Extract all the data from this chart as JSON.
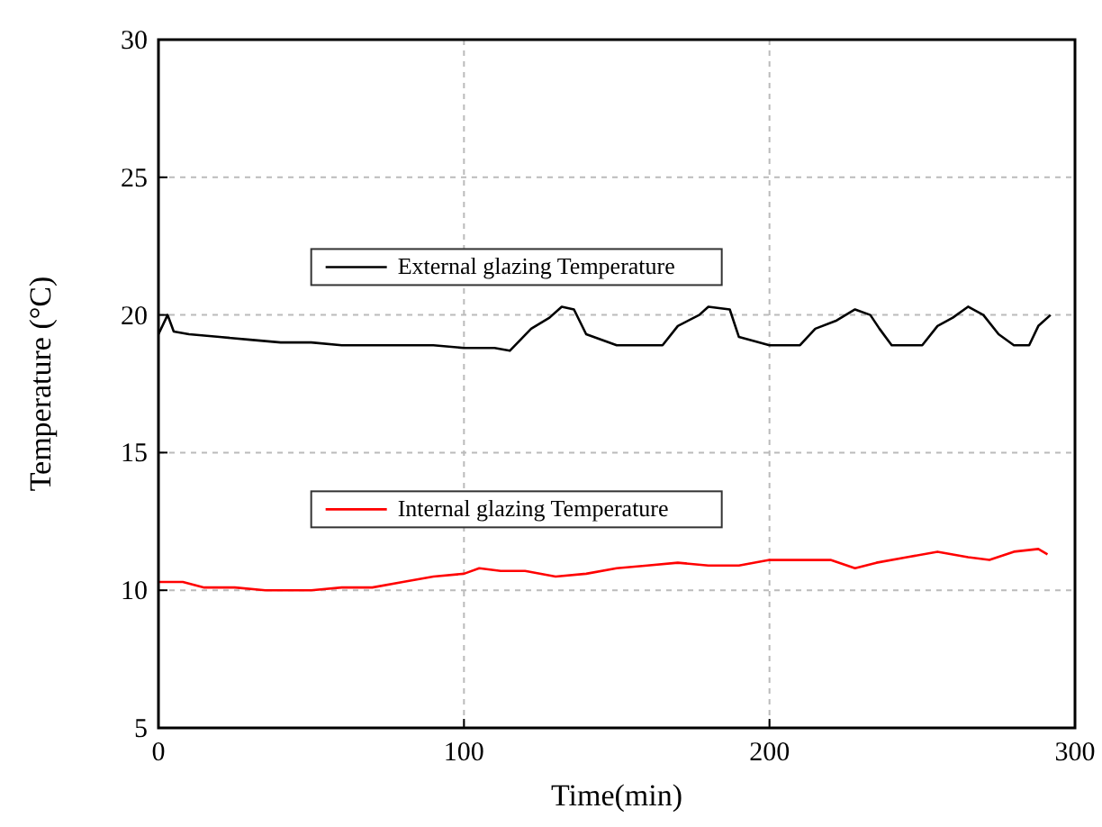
{
  "chart_data": {
    "type": "line",
    "xlabel": "Time(min)",
    "ylabel": "Temperature (°C)",
    "xlim": [
      0,
      300
    ],
    "ylim": [
      5,
      30
    ],
    "xticks": [
      0,
      100,
      200,
      300
    ],
    "yticks": [
      5,
      10,
      15,
      20,
      25,
      30
    ],
    "grid": true,
    "legend": "left",
    "marker": "none",
    "line_style": "solid",
    "series": [
      {
        "name": "External glazing Temperature",
        "color": "#000000",
        "x": [
          0,
          3,
          5,
          10,
          20,
          30,
          40,
          50,
          60,
          70,
          80,
          90,
          100,
          110,
          115,
          122,
          128,
          132,
          136,
          140,
          150,
          160,
          165,
          170,
          177,
          180,
          187,
          190,
          200,
          210,
          215,
          222,
          228,
          233,
          236,
          240,
          250,
          255,
          260,
          265,
          270,
          275,
          280,
          285,
          288,
          292
        ],
        "values": [
          19.3,
          20,
          19.4,
          19.3,
          19.2,
          19.1,
          19,
          19,
          18.9,
          18.9,
          18.9,
          18.9,
          18.8,
          18.8,
          18.7,
          19.5,
          19.9,
          20.3,
          20.2,
          19.3,
          18.9,
          18.9,
          18.9,
          19.6,
          20,
          20.3,
          20.2,
          19.2,
          18.9,
          18.9,
          19.5,
          19.8,
          20.2,
          20,
          19.5,
          18.9,
          18.9,
          19.6,
          19.9,
          20.3,
          20,
          19.3,
          18.9,
          18.9,
          19.6,
          20
        ]
      },
      {
        "name": "Internal glazing Temperature",
        "color": "#ff0000",
        "x": [
          0,
          8,
          15,
          25,
          35,
          50,
          60,
          70,
          80,
          90,
          100,
          105,
          112,
          120,
          130,
          140,
          150,
          160,
          170,
          180,
          190,
          200,
          210,
          220,
          228,
          235,
          245,
          255,
          265,
          272,
          280,
          288,
          291
        ],
        "values": [
          10.3,
          10.3,
          10.1,
          10.1,
          10,
          10,
          10.1,
          10.1,
          10.3,
          10.5,
          10.6,
          10.8,
          10.7,
          10.7,
          10.5,
          10.6,
          10.8,
          10.9,
          11,
          10.9,
          10.9,
          11.1,
          11.1,
          11.1,
          10.8,
          11,
          11.2,
          11.4,
          11.2,
          11.1,
          11.4,
          11.5,
          11.3
        ]
      }
    ]
  }
}
